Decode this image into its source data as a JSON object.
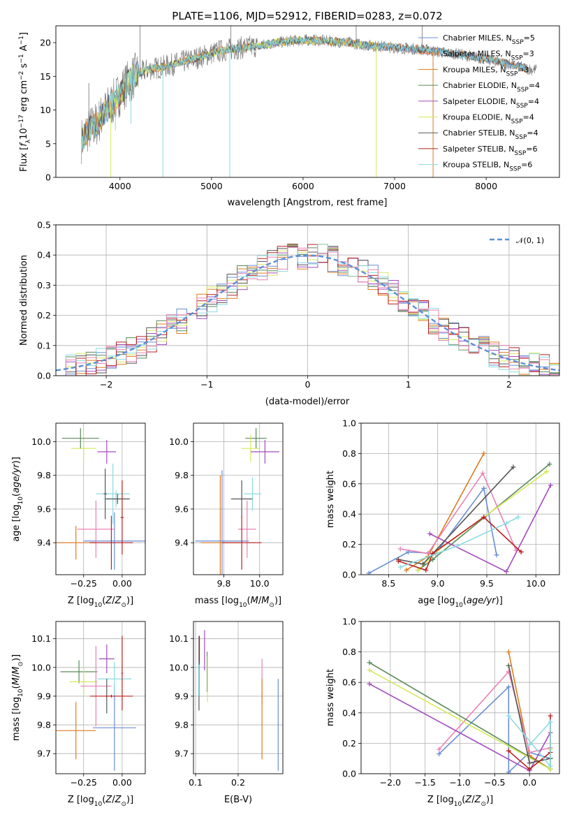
{
  "figure": {
    "title": "PLATE=1106, MJD=52912, FIBERID=0283, z=0.072"
  },
  "colors": {
    "Chabrier MILES": "#6a8dd6",
    "Salpeter MILES": "#e6804a",
    "Kroupa MILES": "#e07b1e",
    "Chabrier ELODIE": "#5a8a5a",
    "Salpeter ELODIE": "#a24bbd",
    "Kroupa ELODIE": "#d5e85a",
    "Chabrier STELIB": "#555555",
    "Salpeter STELIB": "#b82020",
    "Kroupa STELIB": "#8adbe0",
    "Pink": "#e882b4",
    "Data": "#707070",
    "Normal": "#5b8fd4"
  },
  "chart_data": [
    {
      "type": "line",
      "id": "spectrum",
      "title": "PLATE=1106, MJD=52912, FIBERID=0283, z=0.072",
      "xlabel": "wavelength [Angstrom, rest frame]",
      "ylabel": "Flux [f_λ10^-17 erg cm^-2 s^-1 A^-1]",
      "xlim": [
        3300,
        8800
      ],
      "ylim": [
        0,
        22.5
      ],
      "xticks": [
        "4000",
        "5000",
        "6000",
        "7000",
        "8000"
      ],
      "yticks": [
        "0",
        "5",
        "10",
        "15",
        "20"
      ],
      "grid": false,
      "legend_position": "right",
      "legend": [
        {
          "label": "Chabrier MILES, N",
          "sub": "SSP",
          "tail": "=5"
        },
        {
          "label": "Salpeter MILES, N",
          "sub": "SSP",
          "tail": "=3"
        },
        {
          "label": "Kroupa MILES, N",
          "sub": "SSP",
          "tail": "=3"
        },
        {
          "label": "Chabrier ELODIE, N",
          "sub": "SSP",
          "tail": "=4"
        },
        {
          "label": "Salpeter ELODIE, N",
          "sub": "SSP",
          "tail": "=4"
        },
        {
          "label": "Kroupa ELODIE, N",
          "sub": "SSP",
          "tail": "=4"
        },
        {
          "label": "Chabrier STELIB, N",
          "sub": "SSP",
          "tail": "=4"
        },
        {
          "label": "Salpeter STELIB, N",
          "sub": "SSP",
          "tail": "=6"
        },
        {
          "label": "Kroupa STELIB, N",
          "sub": "SSP",
          "tail": "=6"
        }
      ],
      "continuum": [
        [
          3580,
          5.5
        ],
        [
          3650,
          7
        ],
        [
          3750,
          8
        ],
        [
          3850,
          10
        ],
        [
          3950,
          11.5
        ],
        [
          4050,
          13.5
        ],
        [
          4150,
          15
        ],
        [
          4300,
          16
        ],
        [
          4500,
          16.5
        ],
        [
          4700,
          17.2
        ],
        [
          4900,
          18
        ],
        [
          5100,
          18.8
        ],
        [
          5300,
          19.2
        ],
        [
          5500,
          19.5
        ],
        [
          5700,
          20
        ],
        [
          5900,
          20.3
        ],
        [
          6100,
          20.4
        ],
        [
          6300,
          20.2
        ],
        [
          6500,
          20
        ],
        [
          6700,
          19.6
        ],
        [
          6900,
          19.4
        ],
        [
          7100,
          19.2
        ],
        [
          7300,
          19
        ],
        [
          7500,
          18.6
        ],
        [
          7700,
          18.3
        ],
        [
          7900,
          17.8
        ],
        [
          8100,
          17.3
        ],
        [
          8300,
          16.6
        ],
        [
          8500,
          16
        ]
      ],
      "dips": [
        [
          3900,
          0
        ],
        [
          4470,
          0
        ],
        [
          5200,
          0
        ],
        [
          6800,
          0
        ],
        [
          7420,
          0
        ],
        [
          4120,
          8
        ],
        [
          3950,
          7
        ]
      ],
      "spikes": [
        [
          3660,
          14
        ],
        [
          4220,
          22.5
        ],
        [
          5210,
          22.5
        ],
        [
          6580,
          22.5
        ],
        [
          7300,
          22.5
        ]
      ]
    },
    {
      "type": "step",
      "id": "residuals",
      "xlabel": "(data-model)/error",
      "ylabel": "Normed distribution",
      "xlim": [
        -2.5,
        2.5
      ],
      "ylim": [
        0,
        0.5
      ],
      "xticks": [
        "−2",
        "−1",
        "0",
        "1",
        "2"
      ],
      "yticks": [
        "0.0",
        "0.1",
        "0.2",
        "0.3",
        "0.4",
        "0.5"
      ],
      "grid": true,
      "legend_position": "upper right",
      "legend_label": "𝒩(0, 1)",
      "bin_width": 0.1
    },
    {
      "type": "errorbar",
      "id": "age-vs-Z",
      "xlabel": "Z [log10(Z/Z⊙)]",
      "ylabel": "age [log10(age/yr)]",
      "xlim": [
        -0.43,
        0.15
      ],
      "ylim": [
        9.21,
        10.11
      ],
      "xticks": [
        "−0.25",
        "0.00"
      ],
      "yticks": [
        "9.4",
        "9.6",
        "9.8",
        "10.0"
      ],
      "grid": true,
      "points": [
        {
          "c": "Kroupa ELODIE",
          "x": -0.25,
          "y": 9.96,
          "xerr": 0.08,
          "yerr": 0.08
        },
        {
          "c": "Chabrier ELODIE",
          "x": -0.27,
          "y": 10.02,
          "xerr": 0.12,
          "yerr": 0.06
        },
        {
          "c": "Salpeter ELODIE",
          "x": -0.1,
          "y": 9.94,
          "xerr": 0.06,
          "yerr": 0.07
        },
        {
          "c": "Kroupa MILES",
          "x": -0.3,
          "y": 9.4,
          "xerr": 0.13,
          "yerr": 0.1
        },
        {
          "c": "Chabrier MILES",
          "x": -0.05,
          "y": 9.41,
          "xerr": 0.2,
          "yerr": 0.17
        },
        {
          "c": "Pink",
          "x": -0.17,
          "y": 9.48,
          "xerr": 0.12,
          "yerr": 0.17
        },
        {
          "c": "Kroupa STELIB",
          "x": -0.06,
          "y": 9.69,
          "xerr": 0.11,
          "yerr": 0.18
        },
        {
          "c": "Chabrier STELIB",
          "x": -0.11,
          "y": 9.69,
          "xerr": 0.01,
          "yerr": 0.15
        },
        {
          "c": "Salpeter STELIB",
          "x": -0.07,
          "y": 9.4,
          "xerr": 0.14,
          "yerr": 0.16
        },
        {
          "c": "Kroupa STELIB",
          "x": -0.04,
          "y": 9.66,
          "xerr": 0.08,
          "yerr": 0.05
        },
        {
          "c": "Chabrier STELIB",
          "x": -0.03,
          "y": 9.66,
          "xerr": 0.08,
          "yerr": 0.03
        },
        {
          "c": "Salpeter STELIB",
          "x": 0.0,
          "y": 9.55,
          "xerr": 0.01,
          "yerr": 0.22
        }
      ]
    },
    {
      "type": "errorbar",
      "id": "age-vs-mass",
      "xlabel": "mass [log10(M/M⊙)]",
      "ylabel": "",
      "xlim": [
        9.63,
        10.13
      ],
      "ylim": [
        9.21,
        10.11
      ],
      "xticks": [
        "9.8",
        "10.0"
      ],
      "yticks": [
        "9.4",
        "9.6",
        "9.8",
        "10.0"
      ],
      "grid": true,
      "points": [
        {
          "c": "Chabrier ELODIE",
          "x": 9.98,
          "y": 10.02,
          "xerr": 0.06,
          "yerr": 0.06
        },
        {
          "c": "Kroupa ELODIE",
          "x": 9.95,
          "y": 9.96,
          "xerr": 0.05,
          "yerr": 0.08
        },
        {
          "c": "Salpeter ELODIE",
          "x": 10.03,
          "y": 9.94,
          "xerr": 0.08,
          "yerr": 0.07
        },
        {
          "c": "Kroupa MILES",
          "x": 9.78,
          "y": 9.4,
          "xerr": 0.11,
          "yerr": 0.4
        },
        {
          "c": "Chabrier MILES",
          "x": 9.79,
          "y": 9.41,
          "xerr": 0.15,
          "yerr": 0.42
        },
        {
          "c": "Pink",
          "x": 9.93,
          "y": 9.48,
          "xerr": 0.05,
          "yerr": 0.17
        },
        {
          "c": "Kroupa STELIB",
          "x": 9.96,
          "y": 9.69,
          "xerr": 0.05,
          "yerr": 0.1
        },
        {
          "c": "Chabrier STELIB",
          "x": 9.9,
          "y": 9.66,
          "xerr": 0.06,
          "yerr": 0.11
        },
        {
          "c": "Salpeter STELIB",
          "x": 9.9,
          "y": 9.4,
          "xerr": 0.11,
          "yerr": 0.16
        }
      ]
    },
    {
      "type": "line",
      "id": "weight-vs-age",
      "xlabel": "age [log10(age/yr)]",
      "ylabel": "mass weight",
      "xlim": [
        8.22,
        10.24
      ],
      "ylim": [
        0,
        1
      ],
      "xticks": [
        "8.5",
        "9.0",
        "9.5",
        "10.0"
      ],
      "yticks": [
        "0.0",
        "0.2",
        "0.4",
        "0.6",
        "0.8",
        "1.0"
      ],
      "grid": true,
      "series": [
        {
          "c": "Chabrier MILES",
          "x": [
            8.3,
            8.7,
            8.98,
            9.47,
            9.6
          ],
          "y": [
            0.01,
            0.15,
            0.14,
            0.57,
            0.13
          ]
        },
        {
          "c": "Kroupa MILES",
          "x": [
            8.68,
            8.9,
            9.47
          ],
          "y": [
            0.03,
            0.12,
            0.8
          ]
        },
        {
          "c": "Pink",
          "x": [
            8.62,
            8.9,
            9.46,
            9.8
          ],
          "y": [
            0.17,
            0.14,
            0.67,
            0.16
          ]
        },
        {
          "c": "Chabrier ELODIE",
          "x": [
            8.8,
            8.95,
            10.14
          ],
          "y": [
            0.03,
            0.1,
            0.73
          ]
        },
        {
          "c": "Kroupa ELODIE",
          "x": [
            8.8,
            9.0,
            10.11
          ],
          "y": [
            0.03,
            0.16,
            0.68
          ]
        },
        {
          "c": "Salpeter ELODIE",
          "x": [
            8.92,
            9.7,
            10.15
          ],
          "y": [
            0.27,
            0.02,
            0.59
          ]
        },
        {
          "c": "Chabrier STELIB",
          "x": [
            8.6,
            8.85,
            9.77
          ],
          "y": [
            0.1,
            0.07,
            0.71
          ]
        },
        {
          "c": "Salpeter STELIB",
          "x": [
            8.6,
            8.88,
            8.95,
            9.47,
            9.85
          ],
          "y": [
            0.09,
            0.03,
            0.14,
            0.38,
            0.15
          ]
        },
        {
          "c": "Kroupa STELIB",
          "x": [
            8.62,
            9.2,
            9.7,
            9.82
          ],
          "y": [
            0.05,
            0.19,
            0.34,
            0.38
          ]
        }
      ]
    },
    {
      "type": "errorbar",
      "id": "mass-vs-Z",
      "xlabel": "Z [log10(Z/Z⊙)]",
      "ylabel": "mass [log10(M/M⊙)]",
      "xlim": [
        -0.43,
        0.15
      ],
      "ylim": [
        9.63,
        10.16
      ],
      "xticks": [
        "−0.25",
        "0.00"
      ],
      "yticks": [
        "9.7",
        "9.8",
        "9.9",
        "10.0",
        "10.1"
      ],
      "grid": true,
      "points": [
        {
          "c": "Chabrier ELODIE",
          "x": -0.28,
          "y": 9.985,
          "xerr": 0.12,
          "yerr": 0.04
        },
        {
          "c": "Kroupa ELODIE",
          "x": -0.25,
          "y": 9.95,
          "xerr": 0.09,
          "yerr": 0.05
        },
        {
          "c": "Salpeter ELODIE",
          "x": -0.1,
          "y": 10.03,
          "xerr": 0.05,
          "yerr": 0.05
        },
        {
          "c": "Kroupa MILES",
          "x": -0.3,
          "y": 9.78,
          "xerr": 0.13,
          "yerr": 0.1
        },
        {
          "c": "Chabrier MILES",
          "x": -0.05,
          "y": 9.79,
          "xerr": 0.14,
          "yerr": 0.15
        },
        {
          "c": "Pink",
          "x": -0.17,
          "y": 9.935,
          "xerr": 0.1,
          "yerr": 0.14
        },
        {
          "c": "Kroupa STELIB",
          "x": -0.05,
          "y": 9.96,
          "xerr": 0.11,
          "yerr": 0.06
        },
        {
          "c": "Chabrier STELIB",
          "x": -0.1,
          "y": 9.9,
          "xerr": 0.01,
          "yerr": 0.06
        },
        {
          "c": "Salpeter STELIB",
          "x": -0.07,
          "y": 9.9,
          "xerr": 0.14,
          "yerr": 0.005
        },
        {
          "c": "Salpeter STELIB",
          "x": 0.0,
          "y": 9.98,
          "xerr": 0.005,
          "yerr": 0.13
        }
      ]
    },
    {
      "type": "errorbar",
      "id": "mass-vs-ebv",
      "xlabel": "E(B-V)",
      "ylabel": "",
      "xlim": [
        0.095,
        0.305
      ],
      "ylim": [
        9.63,
        10.16
      ],
      "xticks": [
        "0.1",
        "0.2"
      ],
      "yticks": [
        "9.7",
        "9.8",
        "9.9",
        "10.0",
        "10.1"
      ],
      "grid": true,
      "points": [
        {
          "c": "Chabrier STELIB",
          "x": 0.108,
          "y": 9.98,
          "xerr": 0,
          "yerr": 0.13
        },
        {
          "c": "Kroupa STELIB",
          "x": 0.107,
          "y": 9.96,
          "xerr": 0,
          "yerr": 0.06
        },
        {
          "c": "Salpeter STELIB",
          "x": 0.109,
          "y": 10.06,
          "xerr": 0,
          "yerr": 0.05
        },
        {
          "c": "Salpeter ELODIE",
          "x": 0.121,
          "y": 10.06,
          "xerr": 0,
          "yerr": 0.07
        },
        {
          "c": "Chabrier ELODIE",
          "x": 0.127,
          "y": 9.985,
          "xerr": 0,
          "yerr": 0.07
        },
        {
          "c": "Kroupa ELODIE",
          "x": 0.128,
          "y": 9.96,
          "xerr": 0,
          "yerr": 0.08
        },
        {
          "c": "Pink",
          "x": 0.256,
          "y": 9.95,
          "xerr": 0,
          "yerr": 0.08
        },
        {
          "c": "Kroupa MILES",
          "x": 0.256,
          "y": 9.82,
          "xerr": 0,
          "yerr": 0.14
        },
        {
          "c": "Chabrier MILES",
          "x": 0.294,
          "y": 9.8,
          "xerr": 0,
          "yerr": 0.16
        }
      ]
    },
    {
      "type": "line",
      "id": "weight-vs-Z",
      "xlabel": "Z [log10(Z/Z⊙)]",
      "ylabel": "mass weight",
      "xlim": [
        -2.42,
        0.43
      ],
      "ylim": [
        0,
        1
      ],
      "xticks": [
        "−2.0",
        "−1.5",
        "−1.0",
        "−0.5",
        "0.0"
      ],
      "yticks": [
        "0.0",
        "0.2",
        "0.4",
        "0.6",
        "0.8",
        "1.0"
      ],
      "grid": true,
      "series": [
        {
          "c": "Chabrier MILES",
          "x": [
            -1.3,
            -0.3,
            -0.3,
            0.0,
            0.3
          ],
          "y": [
            0.13,
            0.57,
            0.01,
            0.14,
            0.1
          ]
        },
        {
          "c": "Kroupa MILES",
          "x": [
            -0.3,
            0.0,
            0.3
          ],
          "y": [
            0.8,
            0.12,
            0.03
          ]
        },
        {
          "c": "Pink",
          "x": [
            -1.3,
            -0.3,
            0.0,
            0.3
          ],
          "y": [
            0.16,
            0.67,
            0.14,
            0.17
          ]
        },
        {
          "c": "Chabrier ELODIE",
          "x": [
            -2.3,
            0.3,
            0.3
          ],
          "y": [
            0.73,
            0.03,
            0.1
          ]
        },
        {
          "c": "Kroupa ELODIE",
          "x": [
            -2.3,
            0.3,
            0.3
          ],
          "y": [
            0.68,
            0.03,
            0.16
          ]
        },
        {
          "c": "Salpeter ELODIE",
          "x": [
            -2.3,
            0.0,
            0.3
          ],
          "y": [
            0.59,
            0.02,
            0.27
          ]
        },
        {
          "c": "Chabrier STELIB",
          "x": [
            -0.3,
            0.0,
            0.3
          ],
          "y": [
            0.71,
            0.07,
            0.1
          ]
        },
        {
          "c": "Salpeter STELIB",
          "x": [
            -0.3,
            0.0,
            0.3,
            0.3
          ],
          "y": [
            0.15,
            0.03,
            0.14,
            0.38
          ]
        },
        {
          "c": "Kroupa STELIB",
          "x": [
            -0.3,
            0.3,
            0.3,
            0.0
          ],
          "y": [
            0.38,
            0.05,
            0.34,
            0.19
          ]
        }
      ]
    }
  ]
}
